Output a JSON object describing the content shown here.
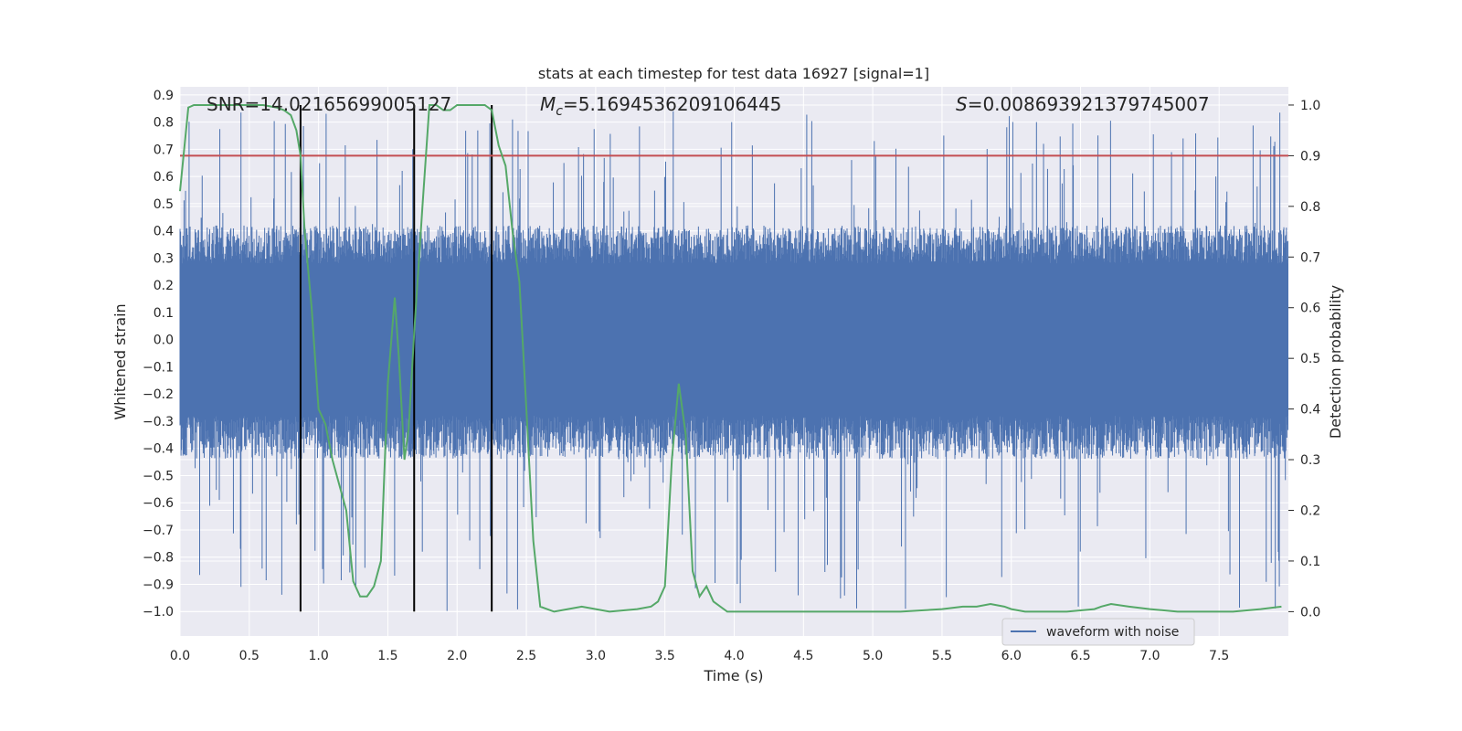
{
  "chart_data": {
    "type": "line",
    "title": "stats at each timestep for test data 16927 [signal=1]",
    "xlabel": "Time (s)",
    "ylabel": "Whitened strain",
    "ylabel_right": "Detection probability",
    "xlim": [
      0.0,
      8.0
    ],
    "ylim": [
      -1.09,
      0.93
    ],
    "ylim_right": [
      -0.048,
      1.036
    ],
    "x_ticks": [
      "0.0",
      "0.5",
      "1.0",
      "1.5",
      "2.0",
      "2.5",
      "3.0",
      "3.5",
      "4.0",
      "4.5",
      "5.0",
      "5.5",
      "6.0",
      "6.5",
      "7.0",
      "7.5"
    ],
    "y_ticks": [
      "0.9",
      "0.8",
      "0.7",
      "0.6",
      "0.5",
      "0.4",
      "0.3",
      "0.2",
      "0.1",
      "0.0",
      "−0.1",
      "−0.2",
      "−0.3",
      "−0.4",
      "−0.5",
      "−0.6",
      "−0.7",
      "−0.8",
      "−0.9",
      "−1.0"
    ],
    "y_ticks_right": [
      "1.0",
      "0.9",
      "0.8",
      "0.7",
      "0.6",
      "0.5",
      "0.4",
      "0.3",
      "0.2",
      "0.1",
      "0.0"
    ],
    "annotations": {
      "snr": "SNR=14.02165699005127",
      "mc_symbol": "M",
      "mc_sub": "c",
      "mc_value": "=5.1694536209106445",
      "s_symbol": "S",
      "s_value": "=0.008693921379745007"
    },
    "legend": {
      "label": "waveform with noise",
      "position": "lower-right"
    },
    "colors": {
      "waveform": "#4c72b0",
      "probability": "#55a868",
      "threshold": "#c44e52",
      "markers": "#000000",
      "background": "#eaeaf2",
      "grid": "#ffffff"
    },
    "threshold": 0.9,
    "vlines": [
      0.87,
      1.69,
      2.25
    ],
    "waveform_envelope": {
      "core_amplitude": 0.28,
      "spike_max": 0.84,
      "spike_min": -1.0
    },
    "probability_series": {
      "name": "",
      "x": [
        0.0,
        0.06,
        0.1,
        0.2,
        0.3,
        0.4,
        0.5,
        0.6,
        0.7,
        0.75,
        0.8,
        0.84,
        0.87,
        0.9,
        0.95,
        1.0,
        1.05,
        1.1,
        1.15,
        1.2,
        1.25,
        1.3,
        1.35,
        1.4,
        1.45,
        1.5,
        1.55,
        1.58,
        1.62,
        1.65,
        1.69,
        1.75,
        1.8,
        1.85,
        1.9,
        1.95,
        2.0,
        2.05,
        2.1,
        2.15,
        2.2,
        2.25,
        2.3,
        2.35,
        2.4,
        2.45,
        2.5,
        2.55,
        2.6,
        2.7,
        2.8,
        2.9,
        3.0,
        3.1,
        3.3,
        3.4,
        3.45,
        3.5,
        3.55,
        3.6,
        3.65,
        3.7,
        3.75,
        3.8,
        3.85,
        3.95,
        4.2,
        4.5,
        4.8,
        5.0,
        5.2,
        5.5,
        5.65,
        5.75,
        5.85,
        5.95,
        6.0,
        6.1,
        6.2,
        6.4,
        6.6,
        6.65,
        6.72,
        6.85,
        7.0,
        7.2,
        7.4,
        7.6,
        7.8,
        7.95
      ],
      "y": [
        0.83,
        0.995,
        1.0,
        1.0,
        1.0,
        1.0,
        1.0,
        1.0,
        0.995,
        0.99,
        0.98,
        0.95,
        0.9,
        0.75,
        0.6,
        0.4,
        0.37,
        0.3,
        0.25,
        0.2,
        0.06,
        0.03,
        0.03,
        0.05,
        0.1,
        0.45,
        0.62,
        0.5,
        0.3,
        0.36,
        0.55,
        0.8,
        1.0,
        1.0,
        0.99,
        0.99,
        1.0,
        1.0,
        1.0,
        1.0,
        1.0,
        0.99,
        0.92,
        0.88,
        0.75,
        0.65,
        0.4,
        0.14,
        0.01,
        0.0,
        0.005,
        0.01,
        0.005,
        0.0,
        0.005,
        0.01,
        0.02,
        0.05,
        0.3,
        0.45,
        0.35,
        0.08,
        0.03,
        0.05,
        0.02,
        0.0,
        0.0,
        0.0,
        0.0,
        0.0,
        0.0,
        0.005,
        0.01,
        0.01,
        0.015,
        0.01,
        0.005,
        0.0,
        0.0,
        0.0,
        0.005,
        0.01,
        0.015,
        0.01,
        0.005,
        0.0,
        0.0,
        0.0,
        0.005,
        0.01
      ]
    }
  }
}
